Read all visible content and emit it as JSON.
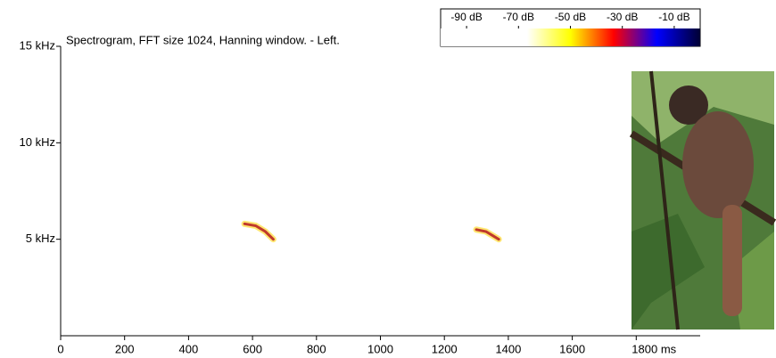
{
  "chart_data": {
    "type": "spectrogram",
    "title": "Spectrogram, FFT size 1024, Hanning window. - Left.",
    "xlim": [
      0,
      2000
    ],
    "xticks": [
      0,
      200,
      400,
      600,
      800,
      1000,
      1200,
      1400,
      1600,
      {
        "value": 1800,
        "label": "1800 ms"
      }
    ],
    "ylim": [
      0,
      15
    ],
    "yticks": [
      {
        "value": 5,
        "label": "5 kHz"
      },
      {
        "value": 10,
        "label": "10 kHz"
      },
      {
        "value": 15,
        "label": "15 kHz"
      }
    ],
    "clim": [
      -100,
      0
    ],
    "cticks": [
      {
        "value": -90,
        "label": "-90 dB"
      },
      {
        "value": -70,
        "label": "-70 dB"
      },
      {
        "value": -50,
        "label": "-50 dB"
      },
      {
        "value": -30,
        "label": "-30 dB"
      },
      {
        "value": -10,
        "label": "-10 dB"
      }
    ],
    "colormap": [
      "#ffffff",
      "#ffffff",
      "#ffffff",
      "#ffff00",
      "#ff0000",
      "#0000ff",
      "#000033"
    ],
    "series": [
      {
        "color": "#c0392b",
        "x": [
          575,
          610,
          640,
          665
        ],
        "values": [
          5.8,
          5.7,
          5.4,
          5.0
        ]
      },
      {
        "color": "#c0392b",
        "x": [
          1300,
          1330,
          1350,
          1370
        ],
        "values": [
          5.5,
          5.4,
          5.2,
          5.0
        ]
      }
    ]
  }
}
